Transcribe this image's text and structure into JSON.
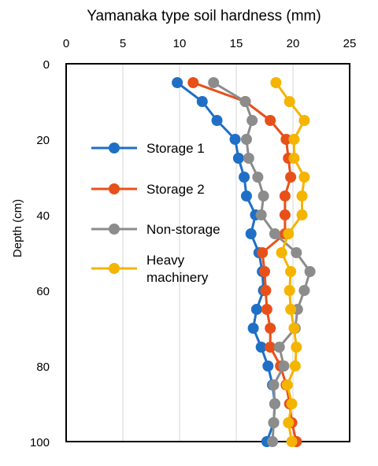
{
  "chart_data": {
    "type": "line",
    "title": "",
    "xlabel": "Yamanaka type soil hardness (mm)",
    "ylabel": "Depth (cm)",
    "xlim": [
      0,
      25
    ],
    "ylim": [
      0,
      100
    ],
    "y_inverted": true,
    "x_axis_position": "top",
    "x_ticks": [
      0,
      5,
      10,
      15,
      20,
      25
    ],
    "y_ticks": [
      0,
      20,
      40,
      60,
      80,
      100
    ],
    "grid": "vertical",
    "legend_position": "left-inside",
    "depths": [
      5,
      10,
      15,
      20,
      25,
      30,
      35,
      40,
      45,
      50,
      55,
      60,
      65,
      70,
      75,
      80,
      85,
      90,
      95,
      100
    ],
    "series": [
      {
        "name": "Storage 1",
        "color": "#1f6fc6",
        "values": [
          9.8,
          12.0,
          13.3,
          14.9,
          15.2,
          15.7,
          15.9,
          16.7,
          16.3,
          17.0,
          17.3,
          17.4,
          16.8,
          16.5,
          17.2,
          17.8,
          18.2,
          18.4,
          18.3,
          17.7
        ]
      },
      {
        "name": "Storage 2",
        "color": "#e8501a",
        "values": [
          11.2,
          15.8,
          18.0,
          19.4,
          19.6,
          19.8,
          19.3,
          19.3,
          19.3,
          17.3,
          17.5,
          17.6,
          17.7,
          18.0,
          18.0,
          18.9,
          19.4,
          19.7,
          19.9,
          20.3
        ]
      },
      {
        "name": "Non-storage",
        "color": "#8c8c8c",
        "values": [
          13.0,
          15.8,
          16.4,
          15.9,
          16.1,
          16.9,
          17.4,
          17.2,
          18.4,
          20.3,
          21.5,
          21.0,
          20.4,
          20.2,
          18.8,
          19.2,
          18.3,
          18.4,
          18.3,
          18.2
        ]
      },
      {
        "name": "Heavy\nmachinery",
        "color": "#f5b400",
        "values": [
          18.5,
          19.7,
          21.0,
          20.1,
          20.1,
          21.0,
          20.8,
          20.8,
          19.6,
          19.0,
          19.8,
          19.7,
          19.8,
          20.1,
          20.3,
          20.2,
          19.5,
          19.9,
          19.6,
          19.9
        ]
      }
    ]
  }
}
